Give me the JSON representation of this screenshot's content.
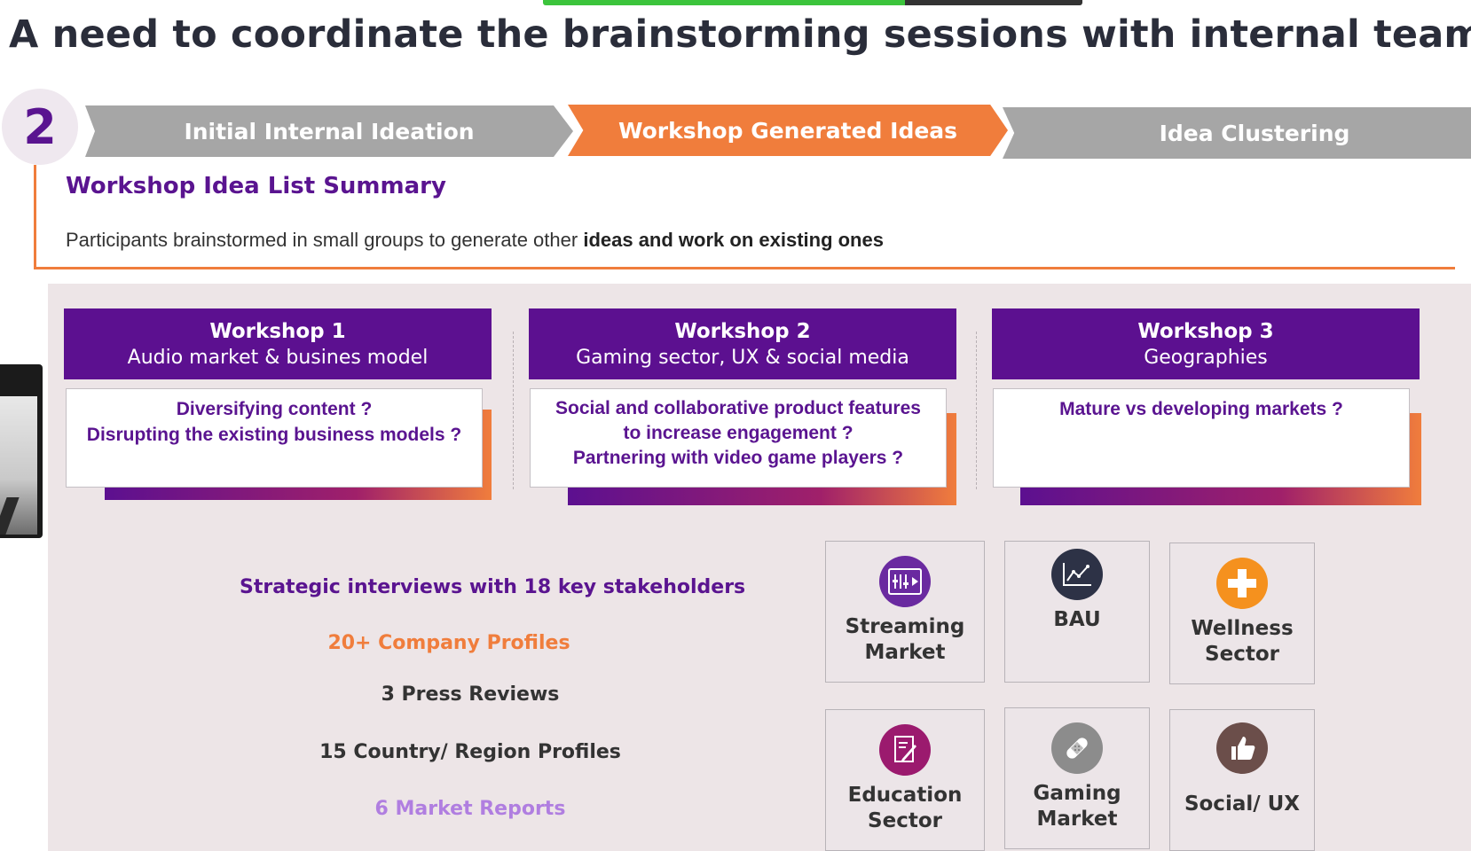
{
  "title": "A need to coordinate the brainstorming sessions with internal teams",
  "step_number": "2",
  "process_steps": [
    {
      "label": "Initial Internal Ideation",
      "state": "inactive"
    },
    {
      "label": "Workshop Generated Ideas",
      "state": "active"
    },
    {
      "label": "Idea Clustering",
      "state": "inactive"
    }
  ],
  "summary": {
    "title": "Workshop Idea List Summary",
    "text_plain": "Participants brainstormed in small groups to generate other",
    "text_bold": "ideas and work on existing ones"
  },
  "workshops": [
    {
      "title": "Workshop 1",
      "subtitle": "Audio market & busines model",
      "ideas": [
        "Diversifying content ?",
        "Disrupting the existing business models ?"
      ]
    },
    {
      "title": "Workshop 2",
      "subtitle": "Gaming sector, UX & social media",
      "ideas": [
        "Social and collaborative product features",
        "to increase engagement ?",
        "Partnering with video game players ?"
      ]
    },
    {
      "title": "Workshop 3",
      "subtitle": "Geographies",
      "ideas": [
        "Mature vs developing markets ?"
      ]
    }
  ],
  "stats": [
    {
      "text": "Strategic interviews with 18 key stakeholders",
      "color": "#5a1490"
    },
    {
      "text": "20+ Company Profiles",
      "color": "#f07d3c"
    },
    {
      "text": "3 Press Reviews",
      "color": "#333333"
    },
    {
      "text": "15 Country/ Region Profiles",
      "color": "#333333"
    },
    {
      "text": "6 Market Reports",
      "color": "#b07ee0"
    }
  ],
  "categories": [
    {
      "line1": "Streaming",
      "line2": "Market",
      "icon": "streaming-icon",
      "color": "#6a2aa0"
    },
    {
      "line1": "BAU",
      "line2": "",
      "icon": "chart-icon",
      "color": "#2d3246"
    },
    {
      "line1": "Wellness",
      "line2": "Sector",
      "icon": "plus-icon",
      "color": "#f5911e"
    },
    {
      "line1": "Education",
      "line2": "Sector",
      "icon": "pencil-icon",
      "color": "#9b1a6e"
    },
    {
      "line1": "Gaming",
      "line2": "Market",
      "icon": "bandage-icon",
      "color": "#8c8c8c"
    },
    {
      "line1": "Social/ UX",
      "line2": "",
      "icon": "thumbs-up-icon",
      "color": "#6b4e4a"
    }
  ],
  "colors": {
    "purple": "#5c1090",
    "orange": "#f07d3c",
    "grey": "#a6a6a6",
    "panel": "#ede5e7"
  }
}
